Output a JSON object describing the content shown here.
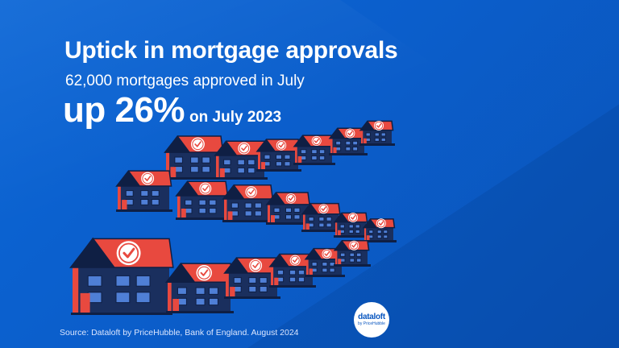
{
  "heading": {
    "title": "Uptick in mortgage approvals",
    "subtitle": "62,000 mortgages approved in July",
    "change_value": "up 26%",
    "change_suffix": "on July 2023"
  },
  "footer": {
    "source": "Source: Dataloft by PriceHubble, Bank of England. August 2024"
  },
  "logo": {
    "name": "dataloft",
    "tagline": "by PriceHubble"
  },
  "illustration": {
    "icon": "house-with-checkmark-icon",
    "roof_color": "#e8493f",
    "body_color": "#1a2f5e",
    "check_color": "#e8493f",
    "background_color": "#0b5ecb"
  }
}
